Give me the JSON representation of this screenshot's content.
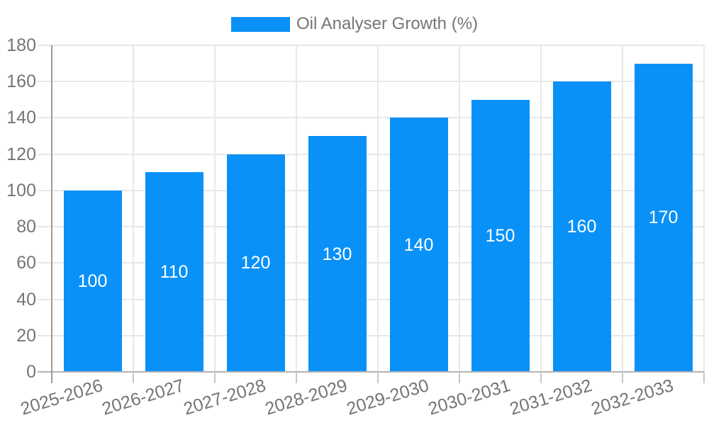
{
  "legend": {
    "label": "Oil Analyser Growth (%)"
  },
  "chart_data": {
    "type": "bar",
    "title": "",
    "xlabel": "",
    "ylabel": "",
    "categories": [
      "2025-2026",
      "2026-2027",
      "2027-2028",
      "2028-2029",
      "2029-2030",
      "2030-2031",
      "2031-2032",
      "2032-2033"
    ],
    "series": [
      {
        "name": "Oil Analyser Growth (%)",
        "values": [
          100,
          110,
          120,
          130,
          140,
          150,
          160,
          170
        ]
      }
    ],
    "bar_value_labels": [
      "100",
      "110",
      "120",
      "130",
      "140",
      "150",
      "160",
      "170"
    ],
    "ylim": [
      0,
      180
    ],
    "yticks": [
      0,
      20,
      40,
      60,
      80,
      100,
      120,
      140,
      160,
      180
    ],
    "grid": true,
    "legend_position": "top",
    "x_label_rotation_deg": -17
  },
  "colors": {
    "bar": "#0991f8",
    "bar_label": "#ffffff",
    "axis_text": "#757575",
    "gridline": "#e8e8e8",
    "baseline": "#b3b3b3",
    "axis_line": "#9a9a9a",
    "bottom_tick": "#c6c6c6",
    "background": "#ffffff"
  }
}
